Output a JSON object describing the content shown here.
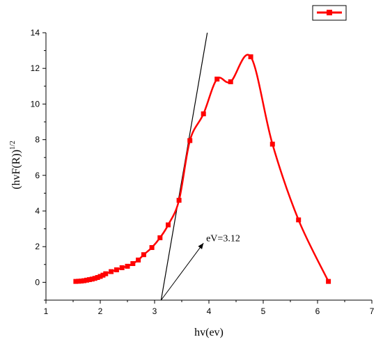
{
  "chart_data": {
    "type": "line",
    "xlabel": "hv(ev)",
    "ylabel_main": "(hvF(R))",
    "ylabel_sup": "1/2",
    "xlim": [
      1,
      7
    ],
    "ylim": [
      -1,
      14
    ],
    "xticks": [
      1,
      2,
      3,
      4,
      5,
      6,
      7
    ],
    "yticks": [
      0,
      2,
      4,
      6,
      8,
      10,
      12,
      14
    ],
    "grid": false,
    "legend": "top-right",
    "series": [
      {
        "color": "#ff0000",
        "marker": "square",
        "x": [
          1.55,
          1.6,
          1.65,
          1.7,
          1.75,
          1.8,
          1.85,
          1.9,
          1.95,
          2.0,
          2.05,
          2.1,
          2.2,
          2.3,
          2.4,
          2.5,
          2.6,
          2.7,
          2.8,
          2.95,
          3.1,
          3.25,
          3.45,
          3.65,
          3.9,
          4.15,
          4.4,
          4.77,
          5.17,
          5.65,
          6.2
        ],
        "y": [
          0.05,
          0.06,
          0.07,
          0.09,
          0.12,
          0.15,
          0.18,
          0.22,
          0.27,
          0.33,
          0.4,
          0.48,
          0.6,
          0.7,
          0.82,
          0.9,
          1.05,
          1.25,
          1.55,
          1.95,
          2.5,
          3.22,
          4.6,
          7.95,
          9.45,
          11.4,
          11.25,
          12.65,
          7.75,
          3.5,
          0.05
        ]
      }
    ],
    "tangent_line": {
      "x": [
        3.12,
        3.97
      ],
      "y": [
        -1,
        14
      ],
      "color": "#000000"
    },
    "annotations": [
      {
        "text": "eV=3.12",
        "text_at": [
          3.95,
          2.3
        ],
        "arrow_from": [
          3.9,
          2.2
        ],
        "arrow_to": [
          3.12,
          -1
        ]
      }
    ]
  }
}
